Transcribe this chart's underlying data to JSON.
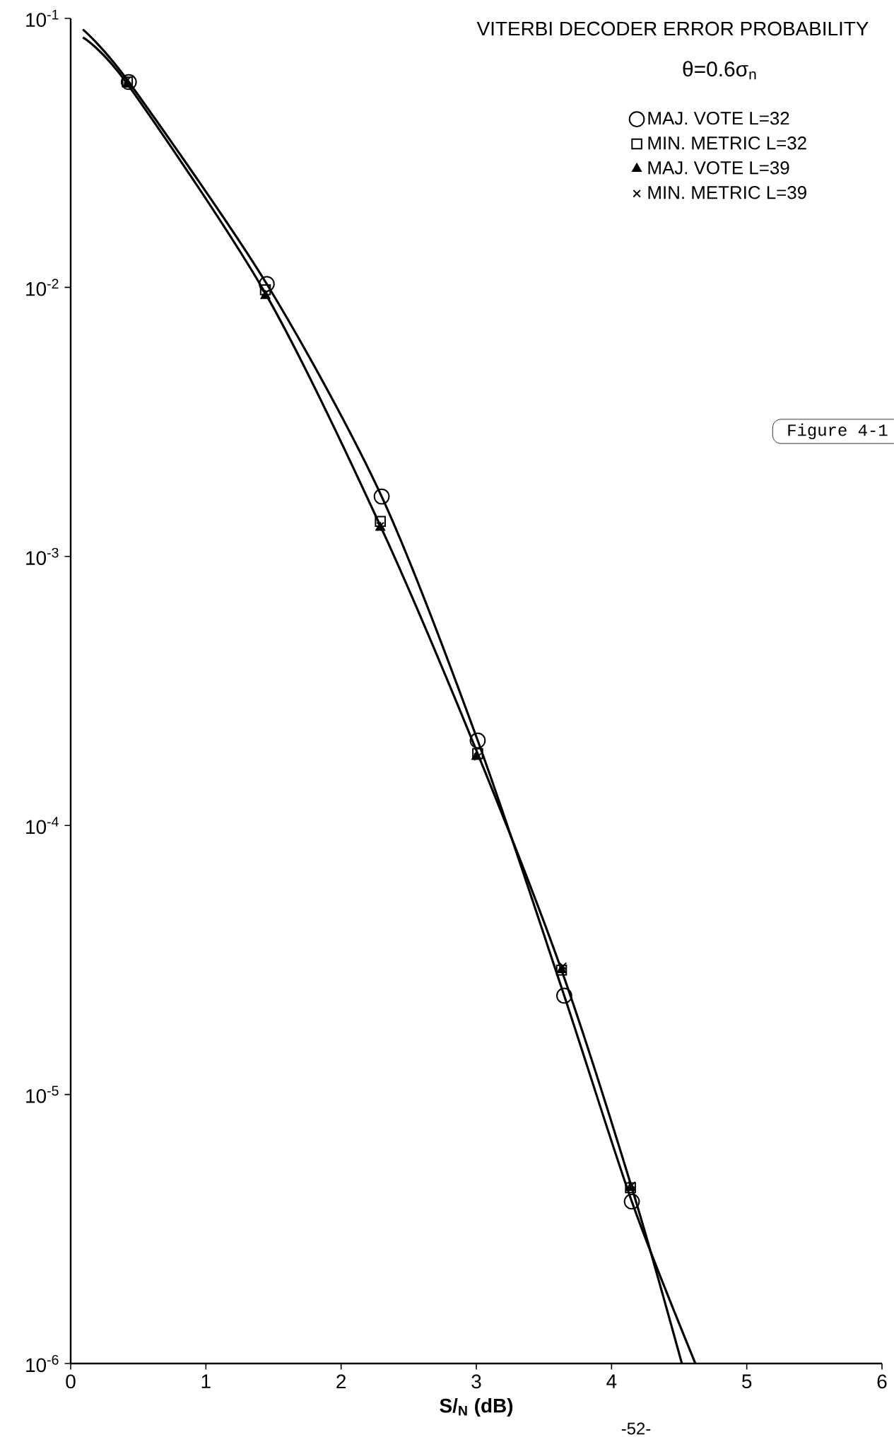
{
  "chart_data": {
    "type": "scatter",
    "title": "VITERBI DECODER ERROR PROBABILITY",
    "subtitle": "θ=0.6σ$_{n}$",
    "xlabel": "S/$_{N}$ (dB)",
    "xlim": [
      0,
      6
    ],
    "xticks": [
      0,
      1,
      2,
      3,
      4,
      5,
      6
    ],
    "ylim": [
      1e-06,
      0.1
    ],
    "yticks": [
      {
        "value": 1e-06,
        "label": "10$^{-6}$"
      },
      {
        "value": 1e-05,
        "label": "10$^{-5}$"
      },
      {
        "value": 0.0001,
        "label": "10$^{-4}$"
      },
      {
        "value": 0.001,
        "label": "10$^{-3}$"
      },
      {
        "value": 0.01,
        "label": "10$^{-2}$"
      },
      {
        "value": 0.1,
        "label": "10$^{-1}$"
      }
    ],
    "log": "y",
    "legend": "top right",
    "series": [
      {
        "name": "MAJ. VOTE L=32",
        "marker": "circle",
        "color": "#000000",
        "x": [
          0.43,
          1.45,
          2.3,
          3.01,
          3.65,
          4.15
        ],
        "values": [
          0.058,
          0.0103,
          0.00167,
          0.000207,
          2.33e-05,
          4e-06
        ]
      },
      {
        "name": "MIN. METRIC L=32",
        "marker": "square",
        "color": "#000000",
        "x": [
          0.42,
          1.44,
          2.29,
          3.01,
          3.63,
          4.14
        ],
        "values": [
          0.058,
          0.0098,
          0.00135,
          0.000185,
          2.9e-05,
          4.5e-06
        ]
      },
      {
        "name": "MAJ. VOTE L=39",
        "marker": "triangle",
        "color": "#000000",
        "x": [
          0.42,
          1.44,
          2.29,
          3.0,
          3.63,
          4.14
        ],
        "values": [
          0.057,
          0.0093,
          0.00128,
          0.00018,
          2.9e-05,
          4.5e-06
        ]
      },
      {
        "name": "MIN. METRIC L=39",
        "marker": "cross",
        "color": "#000000",
        "x": [
          0.42,
          1.44,
          2.29,
          3.01,
          3.64,
          4.15
        ],
        "values": [
          0.059,
          0.0095,
          0.0013,
          0.00018,
          3e-05,
          4.6e-06
        ]
      },
      {
        "type": "line",
        "marker": "none",
        "line_style": "solid",
        "color": "#000000",
        "x": [
          0.09,
          0.43,
          1.45,
          2.3,
          3.01,
          3.65,
          4.15,
          4.62
        ],
        "values": [
          0.091,
          0.058,
          0.0103,
          0.00167,
          0.000207,
          2.33e-05,
          4e-06,
          1e-06
        ]
      },
      {
        "type": "line",
        "marker": "none",
        "line_style": "solid",
        "color": "#000000",
        "x": [
          0.09,
          0.42,
          1.44,
          2.29,
          3.01,
          3.63,
          4.15,
          4.52
        ],
        "values": [
          0.085,
          0.057,
          0.0095,
          0.0013,
          0.000185,
          2.9e-05,
          4.5e-06,
          1e-06
        ]
      }
    ],
    "annotations": [
      "Figure 4-1",
      "-52-"
    ]
  }
}
